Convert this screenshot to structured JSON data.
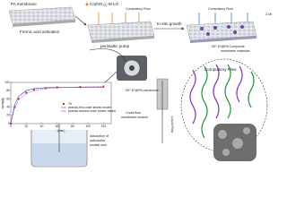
{
  "labels": {
    "pa_membrane": "PA membrane",
    "formic": "Formic acid activation",
    "cobalt": "Co(NO₃)₂·6H₂O",
    "flow1": "Compulsory Flow",
    "insitu": "In-situ growth",
    "flow2": "Compulsory Flow",
    "mi": "2-MI",
    "pump": "peristaltic pump",
    "composite": [
      "ZIF-67@PA Composite",
      "membrane materials"
    ],
    "flow3": "Compulsory Flow",
    "zif_membrane": "ZIF-67@PA membrane",
    "module": [
      "Cross flow",
      "membrane module"
    ],
    "liquid": "Liquid Flow",
    "adsorption": [
      "Adsorption of",
      "radioactive",
      "nuclide ions"
    ]
  },
  "kinetics_plot": {
    "x_label": "t(min)",
    "y_label": "qt(mg/g)",
    "x": [
      0,
      5,
      10,
      20,
      30,
      45,
      60,
      90,
      120
    ],
    "xlim": [
      0,
      130
    ],
    "xticks": [
      0,
      20,
      40,
      60,
      80,
      100,
      120
    ],
    "ylim": [
      0,
      100
    ],
    "yticks": [
      0,
      20,
      40,
      60,
      80,
      100
    ],
    "series": [
      {
        "name": "Th",
        "color": "#d62728",
        "values": [
          0,
          40,
          60,
          75,
          82,
          86,
          88,
          89,
          90
        ]
      },
      {
        "name": "pseudo-first-order kinetic model",
        "color": "#1f4fbf",
        "values": [
          0,
          45,
          66,
          80,
          85,
          87,
          88,
          88,
          88
        ]
      },
      {
        "name": "pseudo-second-order kinetic model",
        "color": "#a03cc0",
        "values": [
          0,
          38,
          57,
          73,
          80,
          85,
          87,
          89,
          90
        ]
      }
    ]
  }
}
